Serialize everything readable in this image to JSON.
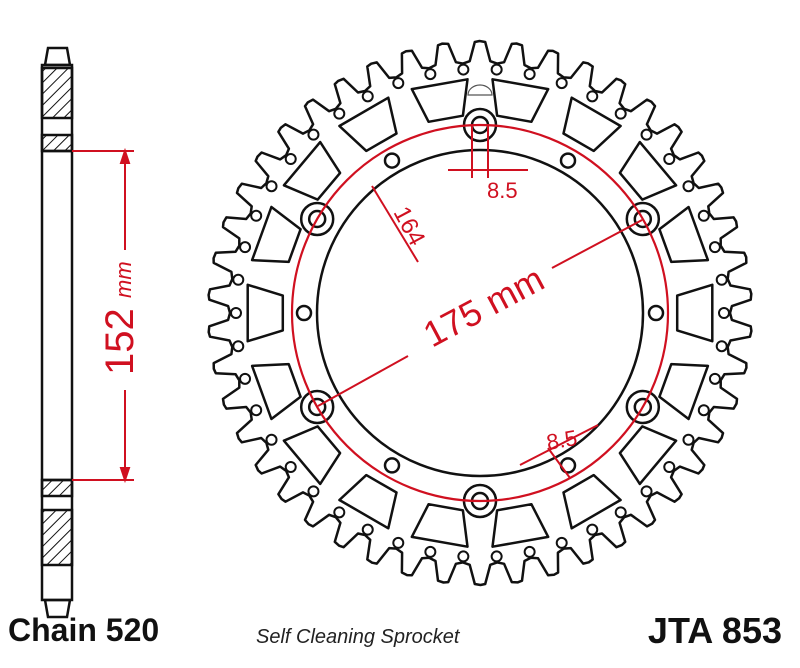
{
  "labels": {
    "chain": "Chain 520",
    "subtitle": "Self Cleaning Sprocket",
    "part_number": "JTA 853"
  },
  "dimensions": {
    "bolt_circle": "175 mm",
    "center_bore_value": "152",
    "center_bore_unit": "mm",
    "pcd_offset": "164",
    "hole_top": "8.5",
    "hole_bottom": "8.5"
  },
  "colors": {
    "outline": "#111111",
    "dimension": "#d01020"
  }
}
